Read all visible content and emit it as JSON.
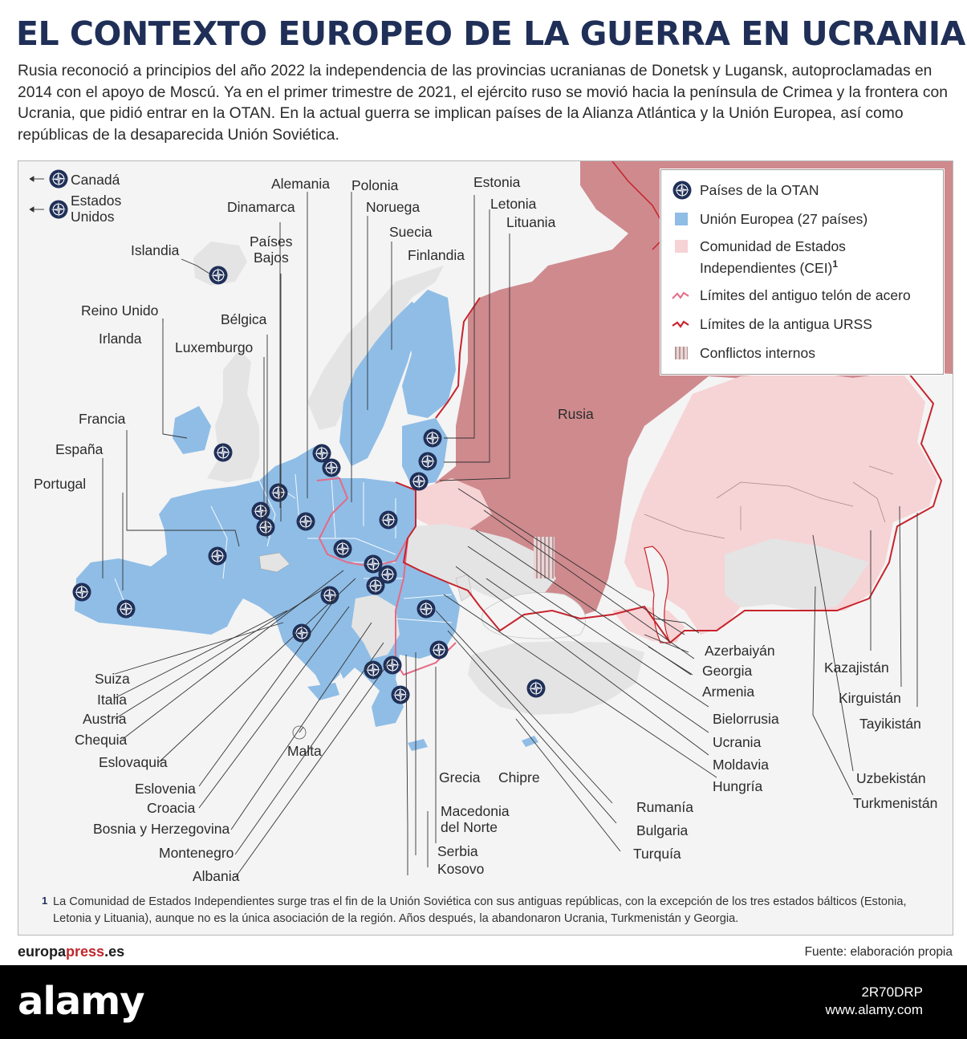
{
  "title": "EL CONTEXTO EUROPEO DE LA GUERRA EN UCRANIA",
  "intro": "Rusia reconoció a principios del año 2022 la independencia de las provincias ucranianas de Donetsk y Lugansk, autoproclamadas en 2014 con el apoyo de Moscú. Ya en el primer trimestre de 2021, el ejército ruso se movió hacia la península de Crimea y la frontera con Ucrania, que pidió entrar en la OTAN. En la actual guerra se implican países de la Alianza Atlántica y la Unión Europea, así como repúblicas de la desaparecida Unión Soviética.",
  "offmap": {
    "canada": "Canadá",
    "usa_1": "Estados",
    "usa_2": "Unidos"
  },
  "legend": {
    "nato": "Países de la OTAN",
    "eu": "Unión Europea (27 países)",
    "cis_1": "Comunidad de Estados",
    "cis_2": "Independientes (CEI)",
    "cis_sup": "1",
    "iron_curtain": "Límites del antiguo telón de acero",
    "ussr": "Límites de la antigua URSS",
    "conflicts": "Conflictos internos"
  },
  "colors": {
    "eu": "#8fbde6",
    "russia": "#cf8a8e",
    "cis": "#f6d3d5",
    "other": "#e4e4e4",
    "border_ussr": "#c8232c",
    "nato_badge": "#1f2f57"
  },
  "labels": {
    "alemania": "Alemania",
    "polonia": "Polonia",
    "estonia": "Estonia",
    "dinamarca": "Dinamarca",
    "noruega": "Noruega",
    "letonia": "Letonia",
    "lituania": "Lituania",
    "islandia": "Islandia",
    "paises_bajos_1": "Países",
    "paises_bajos_2": "Bajos",
    "suecia": "Suecia",
    "finlandia": "Finlandia",
    "reino_unido": "Reino Unido",
    "belgica": "Bélgica",
    "irlanda": "Irlanda",
    "luxemburgo": "Luxemburgo",
    "francia": "Francia",
    "espana": "España",
    "portugal": "Portugal",
    "rusia": "Rusia",
    "suiza": "Suiza",
    "italia": "Italia",
    "austria": "Austria",
    "chequia": "Chequia",
    "eslovaquia": "Eslovaquia",
    "eslovenia": "Eslovenia",
    "croacia": "Croacia",
    "bosnia": "Bosnia y Herzegovina",
    "montenegro": "Montenegro",
    "albania": "Albania",
    "malta": "Malta",
    "grecia": "Grecia",
    "chipre": "Chipre",
    "macedonia_1": "Macedonia",
    "macedonia_2": "del Norte",
    "serbia": "Serbia",
    "kosovo": "Kosovo",
    "azerbaiyan": "Azerbaiyán",
    "georgia": "Georgia",
    "armenia": "Armenia",
    "bielorrusia": "Bielorrusia",
    "ucrania": "Ucrania",
    "moldavia": "Moldavia",
    "hungria": "Hungría",
    "rumania": "Rumanía",
    "bulgaria": "Bulgaria",
    "turquia": "Turquía",
    "kazajistan": "Kazajistán",
    "kirguistan": "Kirguistán",
    "tayikistan": "Tayikistán",
    "uzbekistan": "Uzbekistán",
    "turkmenistan": "Turkmenistán"
  },
  "footnote_mark": "1",
  "footnote": "La Comunidad de Estados Independientes surge tras el fin de la Unión Soviética con sus antiguas repúblicas, con la excepción de los tres estados bálticos (Estonia, Letonia y Lituania), aunque no es la única asociación de la región. Años después, la abandonaron Ucrania, Turkmenistán y Georgia.",
  "brand_main": "europa",
  "brand_accent": "press",
  "brand_tail": ".es",
  "source": "Fuente: elaboración propia",
  "footer": {
    "logo": "alamy",
    "code": "2R70DRP",
    "site": "www.alamy.com"
  }
}
